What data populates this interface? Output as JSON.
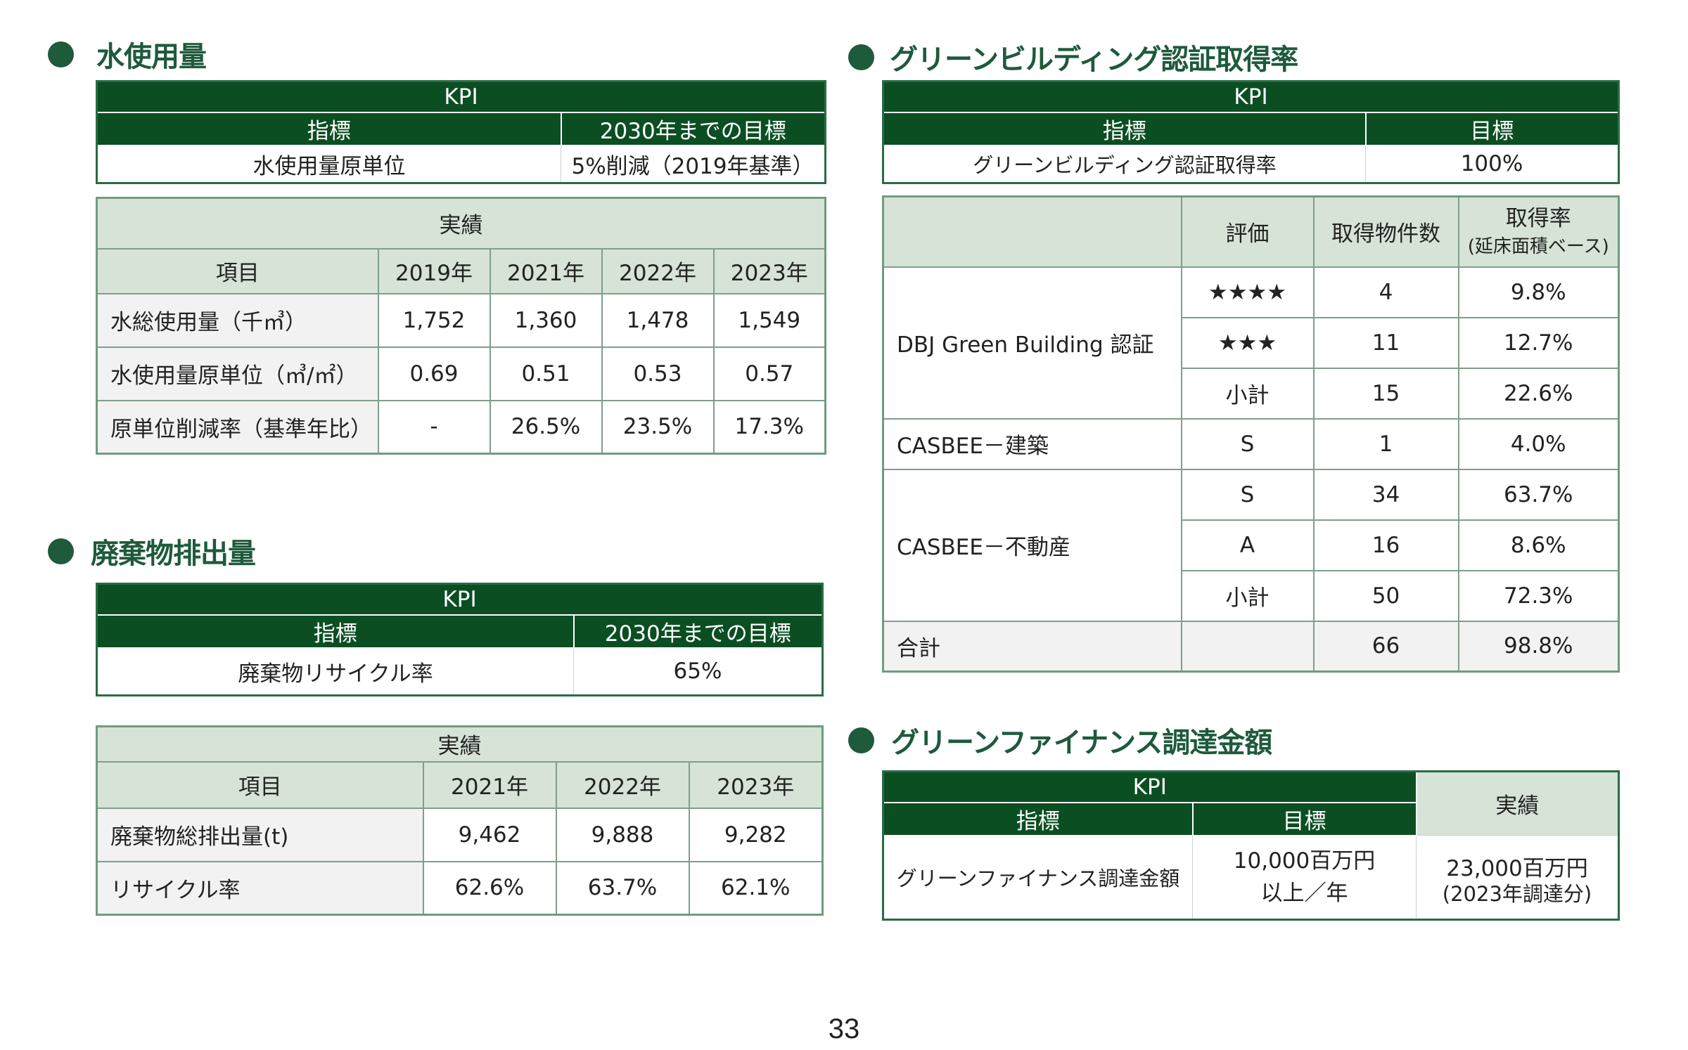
{
  "water": {
    "title": "水使用量",
    "kpi": {
      "caption": "KPI",
      "col1": "指標",
      "col2": "2030年までの目標",
      "indicator": "水使用量原単位",
      "target": "5%削減（2019年基準）"
    },
    "results": {
      "caption": "実績",
      "item_header": "項目",
      "years": [
        "2019年",
        "2021年",
        "2022年",
        "2023年"
      ],
      "rows": [
        {
          "label": "水総使用量（千㎥）",
          "values": [
            "1,752",
            "1,360",
            "1,478",
            "1,549"
          ]
        },
        {
          "label": "水使用量原単位（㎥/㎡）",
          "values": [
            "0.69",
            "0.51",
            "0.53",
            "0.57"
          ]
        },
        {
          "label": "原単位削減率（基準年比）",
          "values": [
            "-",
            "26.5%",
            "23.5%",
            "17.3%"
          ]
        }
      ]
    }
  },
  "waste": {
    "title": "廃棄物排出量",
    "kpi": {
      "caption": "KPI",
      "col1": "指標",
      "col2": "2030年までの目標",
      "indicator": "廃棄物リサイクル率",
      "target": "65%"
    },
    "results": {
      "caption": "実績",
      "item_header": "項目",
      "years": [
        "2021年",
        "2022年",
        "2023年"
      ],
      "rows": [
        {
          "label": "廃棄物総排出量(t)",
          "values": [
            "9,462",
            "9,888",
            "9,282"
          ]
        },
        {
          "label": "リサイクル率",
          "values": [
            "62.6%",
            "63.7%",
            "62.1%"
          ]
        }
      ]
    }
  },
  "green_building": {
    "title": "グリーンビルディング認証取得率",
    "kpi": {
      "caption": "KPI",
      "col1": "指標",
      "col2": "目標",
      "indicator": "グリーンビルディング認証取得率",
      "target": "100%"
    },
    "results": {
      "headers": {
        "rating": "評価",
        "count": "取得物件数",
        "rate": "取得率",
        "rate_note": "(延床面積ベース)"
      },
      "groups": [
        {
          "name": "DBJ Green Building 認証",
          "rows": [
            {
              "rating": "★★★★",
              "count": "4",
              "rate": "9.8%"
            },
            {
              "rating": "★★★",
              "count": "11",
              "rate": "12.7%"
            },
            {
              "rating": "小計",
              "count": "15",
              "rate": "22.6%"
            }
          ]
        },
        {
          "name": "CASBEE－建築",
          "rows": [
            {
              "rating": "S",
              "count": "1",
              "rate": "4.0%"
            }
          ]
        },
        {
          "name": "CASBEE－不動産",
          "rows": [
            {
              "rating": "S",
              "count": "34",
              "rate": "63.7%"
            },
            {
              "rating": "A",
              "count": "16",
              "rate": "8.6%"
            },
            {
              "rating": "小計",
              "count": "50",
              "rate": "72.3%"
            }
          ]
        }
      ],
      "total": {
        "label": "合計",
        "count": "66",
        "rate": "98.8%"
      }
    }
  },
  "green_finance": {
    "title": "グリーンファイナンス調達金額",
    "kpi_caption": "KPI",
    "col1": "指標",
    "col2": "目標",
    "result_header": "実績",
    "indicator": "グリーンファイナンス調達金額",
    "target_line1": "10,000百万円",
    "target_line2": "以上／年",
    "result_line1": "23,000百万円",
    "result_line2": "(2023年調達分)"
  },
  "page_number": "33",
  "colors": {
    "dark_green": "#0b4e22",
    "title_green": "#1e5a3c",
    "light_green": "#d6e3d6",
    "row_gray": "#f2f2f2"
  }
}
